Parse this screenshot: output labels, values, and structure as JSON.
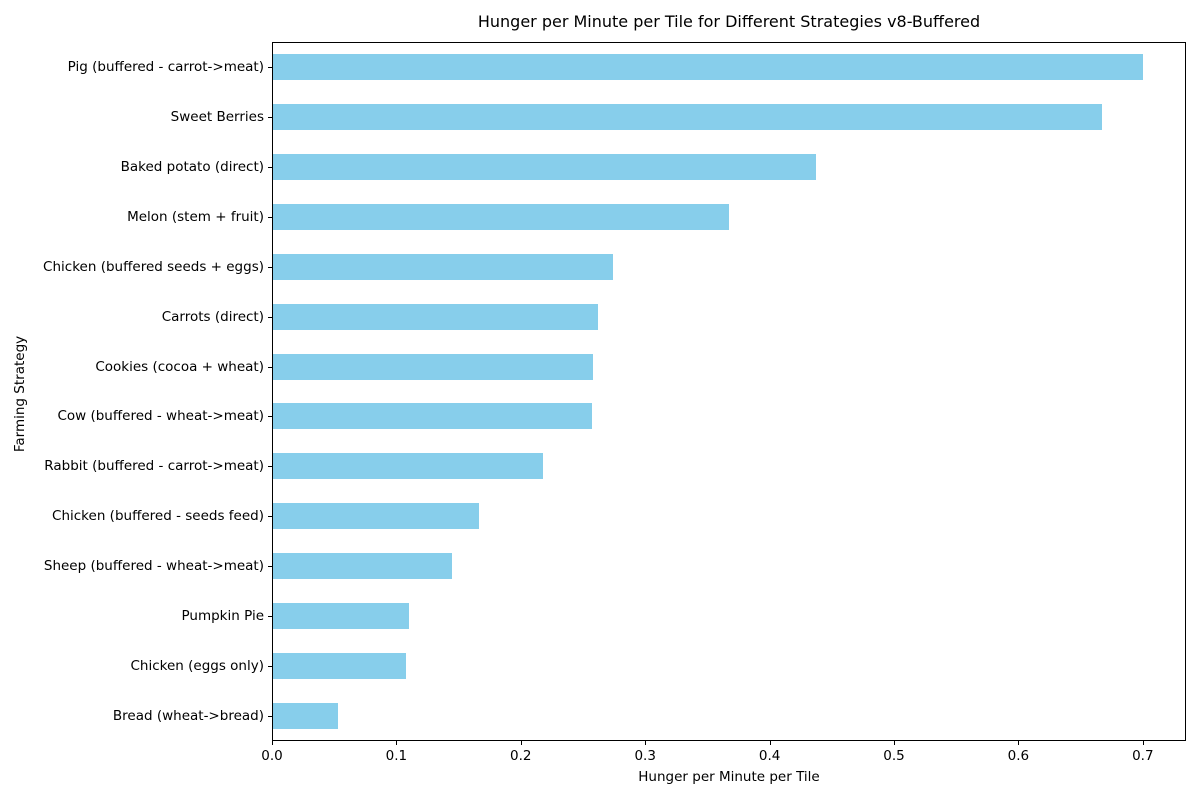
{
  "chart_data": {
    "type": "bar",
    "orientation": "horizontal",
    "title": "Hunger per Minute per Tile for Different Strategies v8-Buffered",
    "xlabel": "Hunger per Minute per Tile",
    "ylabel": "Farming Strategy",
    "categories": [
      "Pig (buffered - carrot->meat)",
      "Sweet Berries",
      "Baked potato (direct)",
      "Melon (stem + fruit)",
      "Chicken (buffered seeds + eggs)",
      "Carrots (direct)",
      "Cookies (cocoa + wheat)",
      "Cow (buffered - wheat->meat)",
      "Rabbit (buffered - carrot->meat)",
      "Chicken (buffered - seeds feed)",
      "Sheep (buffered - wheat->meat)",
      "Pumpkin Pie",
      "Chicken (eggs only)",
      "Bread (wheat->bread)"
    ],
    "values": [
      0.7,
      0.667,
      0.437,
      0.367,
      0.274,
      0.262,
      0.258,
      0.257,
      0.218,
      0.166,
      0.145,
      0.11,
      0.108,
      0.053
    ],
    "bar_color": "#87CEEB",
    "background_color": "#FFFFFF",
    "spine_color": "#000000",
    "xlim": [
      0,
      0.7347
    ],
    "x_ticks": [
      0.0,
      0.1,
      0.2,
      0.3,
      0.4,
      0.5,
      0.6,
      0.7
    ],
    "x_tick_labels": [
      "0.0",
      "0.1",
      "0.2",
      "0.3",
      "0.4",
      "0.5",
      "0.6",
      "0.7"
    ],
    "grid": false,
    "legend": "none"
  }
}
